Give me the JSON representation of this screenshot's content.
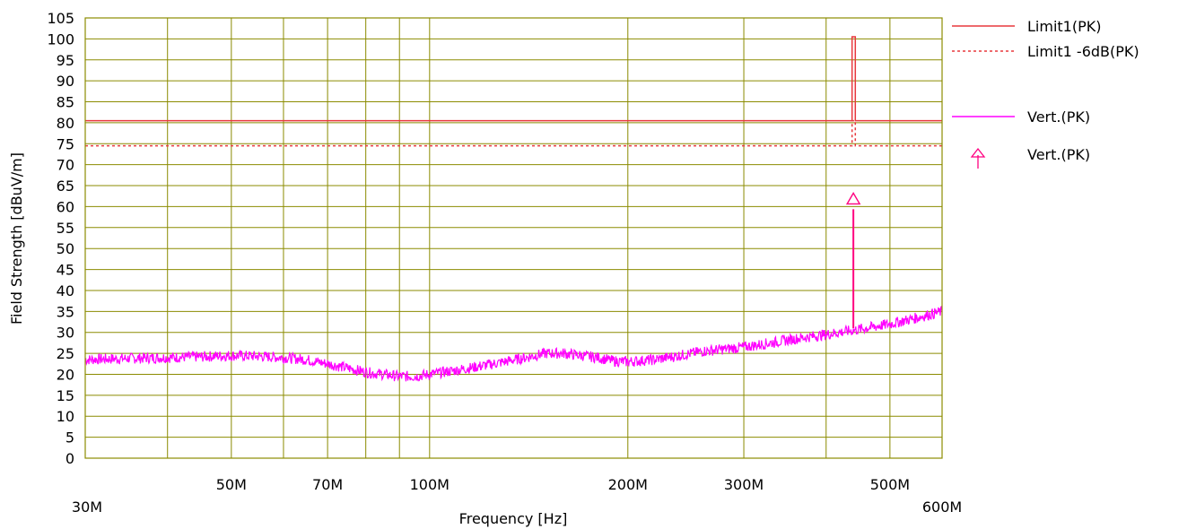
{
  "chart_data": {
    "type": "line",
    "xlabel": "Frequency [Hz]",
    "ylabel": "Field Strength [dBuV/m]",
    "x_scale": "log",
    "xlim": [
      30000000,
      600000000
    ],
    "ylim": [
      0,
      105
    ],
    "grid": true,
    "legend_position": "right",
    "x_ticks": [
      {
        "value": 30000000,
        "label": "30M"
      },
      {
        "value": 50000000,
        "label": "50M"
      },
      {
        "value": 70000000,
        "label": "70M"
      },
      {
        "value": 100000000,
        "label": "100M"
      },
      {
        "value": 200000000,
        "label": "200M"
      },
      {
        "value": 300000000,
        "label": "300M"
      },
      {
        "value": 500000000,
        "label": "500M"
      },
      {
        "value": 600000000,
        "label": "600M"
      }
    ],
    "x_gridlines": [
      40000000,
      50000000,
      60000000,
      70000000,
      80000000,
      90000000,
      100000000,
      200000000,
      300000000,
      400000000,
      500000000
    ],
    "y_ticks": [
      0,
      5,
      10,
      15,
      20,
      25,
      30,
      35,
      40,
      45,
      50,
      55,
      60,
      65,
      70,
      75,
      80,
      85,
      90,
      95,
      100,
      105
    ],
    "series": [
      {
        "name": "Limit1(PK)",
        "color": "#e8383d",
        "style": "solid",
        "x": [
          30000000,
          438000000,
          438000000,
          443000000,
          443000000,
          600000000
        ],
        "y": [
          80.5,
          80.5,
          100.5,
          100.5,
          80.5,
          80.5
        ]
      },
      {
        "name": "Limit1 -6dB(PK)",
        "color": "#e8383d",
        "style": "dashed",
        "x": [
          30000000,
          438000000,
          438000000,
          443000000,
          443000000,
          600000000
        ],
        "y": [
          74.5,
          74.5,
          80.5,
          80.5,
          74.5,
          74.5
        ]
      },
      {
        "name": "Vert.(PK)",
        "color": "#ff00ff",
        "style": "solid",
        "x": [
          30000000,
          35000000,
          40000000,
          45000000,
          50000000,
          55000000,
          60000000,
          65000000,
          70000000,
          75000000,
          80000000,
          85000000,
          90000000,
          95000000,
          100000000,
          110000000,
          120000000,
          130000000,
          140000000,
          150000000,
          160000000,
          170000000,
          180000000,
          190000000,
          200000000,
          220000000,
          240000000,
          260000000,
          280000000,
          300000000,
          330000000,
          360000000,
          400000000,
          420000000,
          440000000,
          460000000,
          500000000,
          550000000,
          600000000
        ],
        "y": [
          23.5,
          23.8,
          24.0,
          24.2,
          24.5,
          24.3,
          24.0,
          23.5,
          22.5,
          21.5,
          20.5,
          20.0,
          19.5,
          19.5,
          20.0,
          21.0,
          22.0,
          23.0,
          24.0,
          25.0,
          25.0,
          24.5,
          24.0,
          23.2,
          23.0,
          23.5,
          24.5,
          25.5,
          26.0,
          26.5,
          27.5,
          28.5,
          29.5,
          30.0,
          30.5,
          31.0,
          32.0,
          33.5,
          35.0
        ]
      }
    ],
    "markers": [
      {
        "name": "Vert.(PK)",
        "color": "#ff0080",
        "shape": "arrow-up",
        "x": 440000000,
        "y": 61.5,
        "base_y": 31
      }
    ]
  }
}
